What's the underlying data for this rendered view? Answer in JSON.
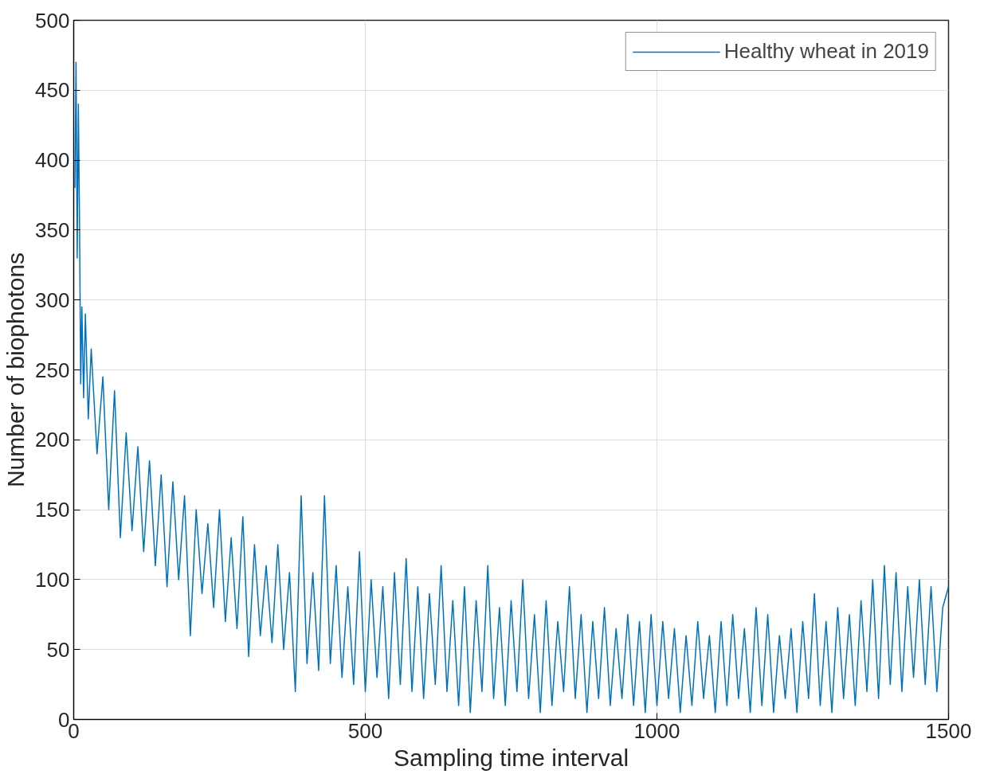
{
  "chart_data": {
    "type": "line",
    "xlabel": "Sampling time interval",
    "ylabel": "Number of biophotons",
    "xlim": [
      0,
      1500
    ],
    "ylim": [
      0,
      500
    ],
    "xticks": [
      0,
      500,
      1000,
      1500
    ],
    "yticks": [
      0,
      50,
      100,
      150,
      200,
      250,
      300,
      350,
      400,
      450,
      500
    ],
    "grid": true,
    "legend": "top right",
    "marker": "none",
    "line_style": "solid",
    "series": [
      {
        "name": "Healthy wheat in 2019",
        "color": "#0072bd",
        "x": [
          2,
          4,
          6,
          8,
          10,
          12,
          14,
          17,
          20,
          25,
          30,
          40,
          50,
          60,
          70,
          80,
          90,
          100,
          110,
          120,
          130,
          140,
          150,
          160,
          170,
          180,
          190,
          200,
          210,
          220,
          230,
          240,
          250,
          260,
          270,
          280,
          290,
          300,
          310,
          320,
          330,
          340,
          350,
          360,
          370,
          380,
          390,
          400,
          410,
          420,
          430,
          440,
          450,
          460,
          470,
          480,
          490,
          500,
          510,
          520,
          530,
          540,
          550,
          560,
          570,
          580,
          590,
          600,
          610,
          620,
          630,
          640,
          650,
          660,
          670,
          680,
          690,
          700,
          710,
          720,
          730,
          740,
          750,
          760,
          770,
          780,
          790,
          800,
          810,
          820,
          830,
          840,
          850,
          860,
          870,
          880,
          890,
          900,
          910,
          920,
          930,
          940,
          950,
          960,
          970,
          980,
          990,
          1000,
          1010,
          1020,
          1030,
          1040,
          1050,
          1060,
          1070,
          1080,
          1090,
          1100,
          1110,
          1120,
          1130,
          1140,
          1150,
          1160,
          1170,
          1180,
          1190,
          1200,
          1210,
          1220,
          1230,
          1240,
          1250,
          1260,
          1270,
          1280,
          1290,
          1300,
          1310,
          1320,
          1330,
          1340,
          1350,
          1360,
          1370,
          1380,
          1390,
          1400,
          1410,
          1420,
          1430,
          1440,
          1450,
          1460,
          1470,
          1480,
          1490,
          1500
        ],
        "values": [
          380,
          470,
          330,
          440,
          355,
          240,
          295,
          230,
          290,
          215,
          265,
          190,
          245,
          150,
          235,
          130,
          205,
          135,
          195,
          120,
          185,
          110,
          175,
          95,
          170,
          100,
          160,
          60,
          150,
          90,
          140,
          80,
          150,
          70,
          130,
          65,
          145,
          45,
          125,
          60,
          110,
          55,
          125,
          50,
          105,
          20,
          160,
          40,
          105,
          35,
          160,
          40,
          110,
          30,
          95,
          25,
          120,
          20,
          100,
          30,
          95,
          15,
          105,
          25,
          115,
          20,
          95,
          15,
          90,
          25,
          110,
          20,
          85,
          10,
          95,
          5,
          85,
          20,
          110,
          15,
          80,
          10,
          85,
          20,
          100,
          15,
          75,
          5,
          85,
          10,
          70,
          20,
          95,
          15,
          75,
          5,
          70,
          15,
          80,
          10,
          65,
          15,
          75,
          10,
          70,
          5,
          75,
          10,
          70,
          15,
          65,
          5,
          60,
          10,
          70,
          15,
          60,
          5,
          70,
          10,
          75,
          15,
          65,
          5,
          80,
          10,
          75,
          5,
          60,
          15,
          65,
          5,
          70,
          15,
          90,
          10,
          70,
          5,
          80,
          15,
          75,
          10,
          85,
          20,
          100,
          15,
          110,
          25,
          105,
          20,
          95,
          30,
          100,
          25,
          95,
          20,
          80,
          95
        ]
      }
    ]
  }
}
